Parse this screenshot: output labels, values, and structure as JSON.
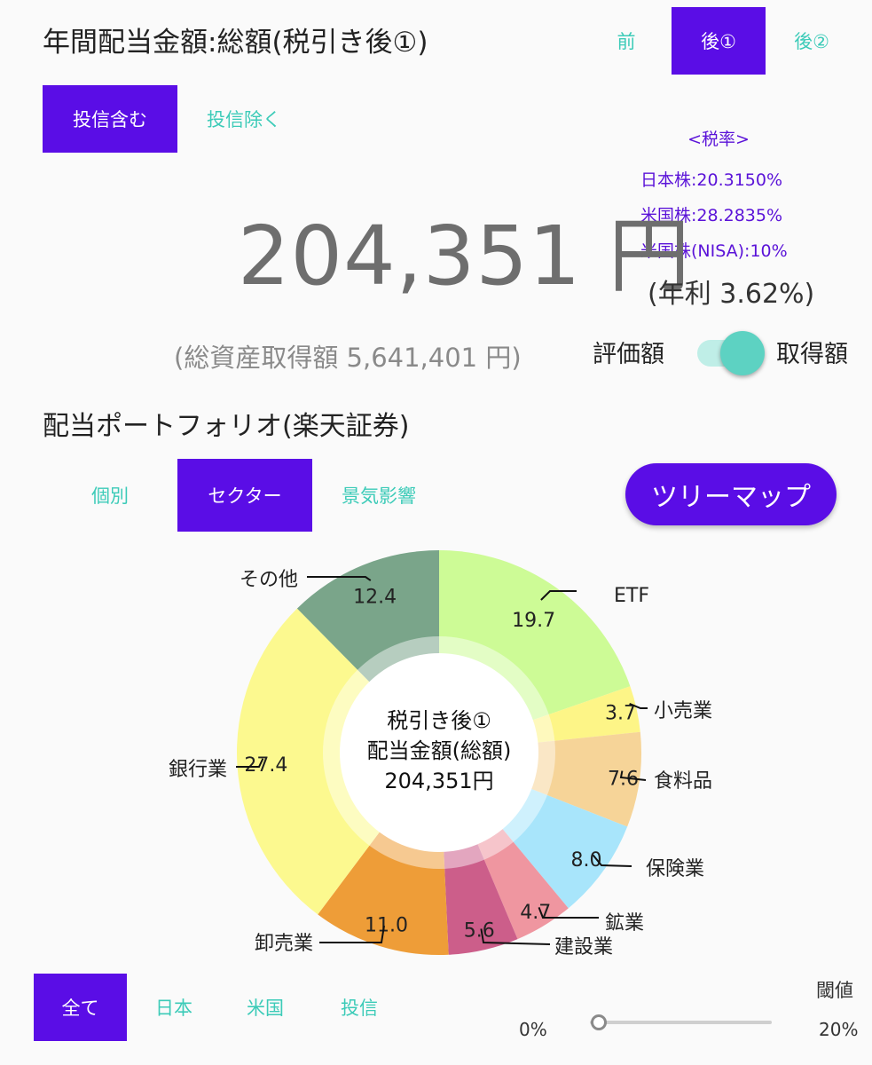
{
  "header": {
    "title": "年間配当金額:総額(税引き後①)"
  },
  "tax_tabs": [
    {
      "label": "前",
      "active": false
    },
    {
      "label": "後①",
      "active": true
    },
    {
      "label": "後②",
      "active": false
    }
  ],
  "fund_tabs": [
    {
      "label": "投信含む",
      "active": true
    },
    {
      "label": "投信除く",
      "active": false
    }
  ],
  "tax_rates": {
    "title": "<税率>",
    "lines": [
      "日本株:20.3150%",
      "米国株:28.2835%",
      "米国株(NISA):10%"
    ]
  },
  "summary": {
    "amount": "204,351 円",
    "yield": "(年利 3.62%)",
    "assets": "(総資産取得額 5,641,401 円)"
  },
  "basis_toggle": {
    "left_label": "評価額",
    "right_label": "取得額",
    "state": "取得額"
  },
  "portfolio": {
    "title": "配当ポートフォリオ(楽天証券)"
  },
  "view_tabs": [
    {
      "label": "個別",
      "active": false
    },
    {
      "label": "セクター",
      "active": true
    },
    {
      "label": "景気影響",
      "active": false
    }
  ],
  "treemap_button": {
    "label": "ツリーマップ"
  },
  "chart_data": {
    "type": "pie",
    "center_lines": [
      "税引き後①",
      "配当金額(総額)",
      "204,351円"
    ],
    "slices": [
      {
        "name": "ETF",
        "value": 19.7,
        "label": "19.7",
        "color": "#cdfb96"
      },
      {
        "name": "小売業",
        "value": 3.7,
        "label": "3.7",
        "color": "#fdf587"
      },
      {
        "name": "食料品",
        "value": 7.6,
        "label": "7.6",
        "color": "#f6d498"
      },
      {
        "name": "保険業",
        "value": 8.0,
        "label": "8.0",
        "color": "#a8e5fb"
      },
      {
        "name": "鉱業",
        "value": 4.7,
        "label": "4.7",
        "color": "#ef96a0"
      },
      {
        "name": "建設業",
        "value": 5.6,
        "label": "5.6",
        "color": "#cc5e8a"
      },
      {
        "name": "卸売業",
        "value": 11.0,
        "label": "11.0",
        "color": "#ee9d38"
      },
      {
        "name": "銀行業",
        "value": 27.4,
        "label": "27.4",
        "color": "#fcf98f"
      },
      {
        "name": "その他",
        "value": 12.4,
        "label": "12.4",
        "color": "#7aa58a"
      }
    ]
  },
  "region_tabs": [
    {
      "label": "全て",
      "active": true
    },
    {
      "label": "日本",
      "active": false
    },
    {
      "label": "米国",
      "active": false
    },
    {
      "label": "投信",
      "active": false
    }
  ],
  "threshold": {
    "label": "閾値",
    "min": "0%",
    "max": "20%",
    "value_fraction": 0.05
  }
}
